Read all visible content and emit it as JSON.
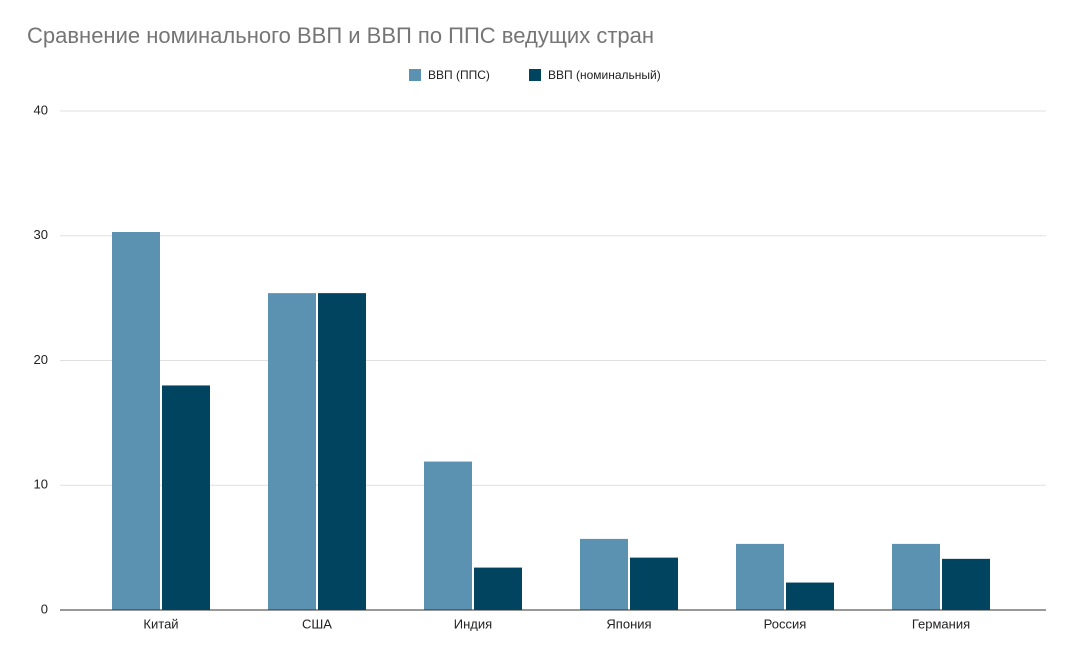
{
  "chart_data": {
    "type": "bar",
    "title": "Сравнение номинального ВВП и ВВП по ППС ведущих стран",
    "categories": [
      "Китай",
      "США",
      "Индия",
      "Япония",
      "Россия",
      "Германия"
    ],
    "series": [
      {
        "name": "ВВП (ППС)",
        "color": "#5b92b1",
        "values": [
          30.3,
          25.4,
          11.9,
          5.7,
          5.3,
          5.3
        ]
      },
      {
        "name": "ВВП (номинальный)",
        "color": "#01445f",
        "values": [
          18.0,
          25.4,
          3.4,
          4.2,
          2.2,
          4.1
        ]
      }
    ],
    "ylim": [
      0,
      40
    ],
    "yticks": [
      0,
      10,
      20,
      30,
      40
    ],
    "grid": true,
    "legend": "top"
  }
}
